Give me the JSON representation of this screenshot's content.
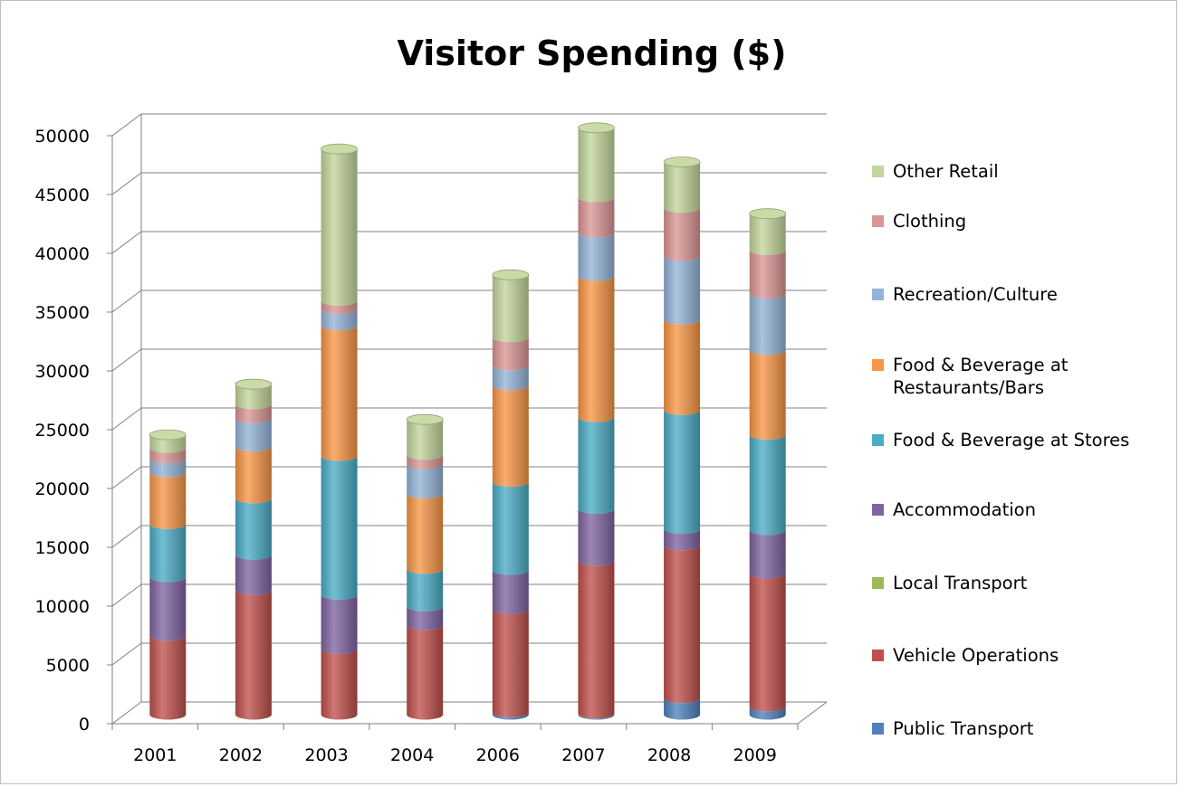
{
  "chart_data": {
    "type": "bar",
    "stacked": true,
    "title": "Visitor Spending ($)",
    "xlabel": "",
    "ylabel": "",
    "ylim": [
      0,
      50000
    ],
    "yticks": [
      "0",
      "5000",
      "10000",
      "15000",
      "20000",
      "25000",
      "30000",
      "35000",
      "40000",
      "45000",
      "50000"
    ],
    "categories": [
      "2001",
      "2002",
      "2003",
      "2004",
      "2006",
      "2007",
      "2008",
      "2009"
    ],
    "grid": true,
    "legend_position": "right",
    "series": [
      {
        "name": "Public Transport",
        "color": "#4f81bd",
        "values": [
          0,
          0,
          0,
          0,
          200,
          100,
          1400,
          700
        ]
      },
      {
        "name": "Vehicle Operations",
        "color": "#c0504d",
        "values": [
          6700,
          10600,
          5600,
          7600,
          8800,
          13000,
          13000,
          11300
        ]
      },
      {
        "name": "Local Transport",
        "color": "#9bbb59",
        "values": [
          0,
          0,
          0,
          0,
          0,
          0,
          0,
          0
        ]
      },
      {
        "name": "Accommodation",
        "color": "#8064a2",
        "values": [
          5000,
          3000,
          4600,
          1600,
          3300,
          4400,
          1400,
          3700
        ]
      },
      {
        "name": "Food & Beverage at Stores",
        "color": "#4bacc6",
        "values": [
          4500,
          4800,
          11800,
          3200,
          7500,
          7800,
          10100,
          8100
        ]
      },
      {
        "name": "Food & Beverage at Restaurants/Bars",
        "color": "#f79646",
        "values": [
          4400,
          4400,
          11100,
          6400,
          8200,
          12000,
          7700,
          7200
        ]
      },
      {
        "name": "Recreation/Culture",
        "color": "#95b3d7",
        "values": [
          1200,
          2400,
          1400,
          2500,
          1700,
          3700,
          5400,
          4800
        ]
      },
      {
        "name": "Clothing",
        "color": "#da9694",
        "values": [
          900,
          1200,
          700,
          800,
          2400,
          3000,
          4100,
          3700
        ]
      },
      {
        "name": "Other Retail",
        "color": "#c3d69b",
        "values": [
          1100,
          1700,
          12900,
          3000,
          5300,
          5900,
          3900,
          3100
        ]
      }
    ]
  },
  "legend_labels": [
    "Other Retail",
    "Clothing",
    "Recreation/Culture",
    "Food & Beverage at\nRestaurants/Bars",
    "Food & Beverage at Stores",
    "Accommodation",
    "Local Transport",
    "Vehicle Operations",
    "Public Transport"
  ]
}
